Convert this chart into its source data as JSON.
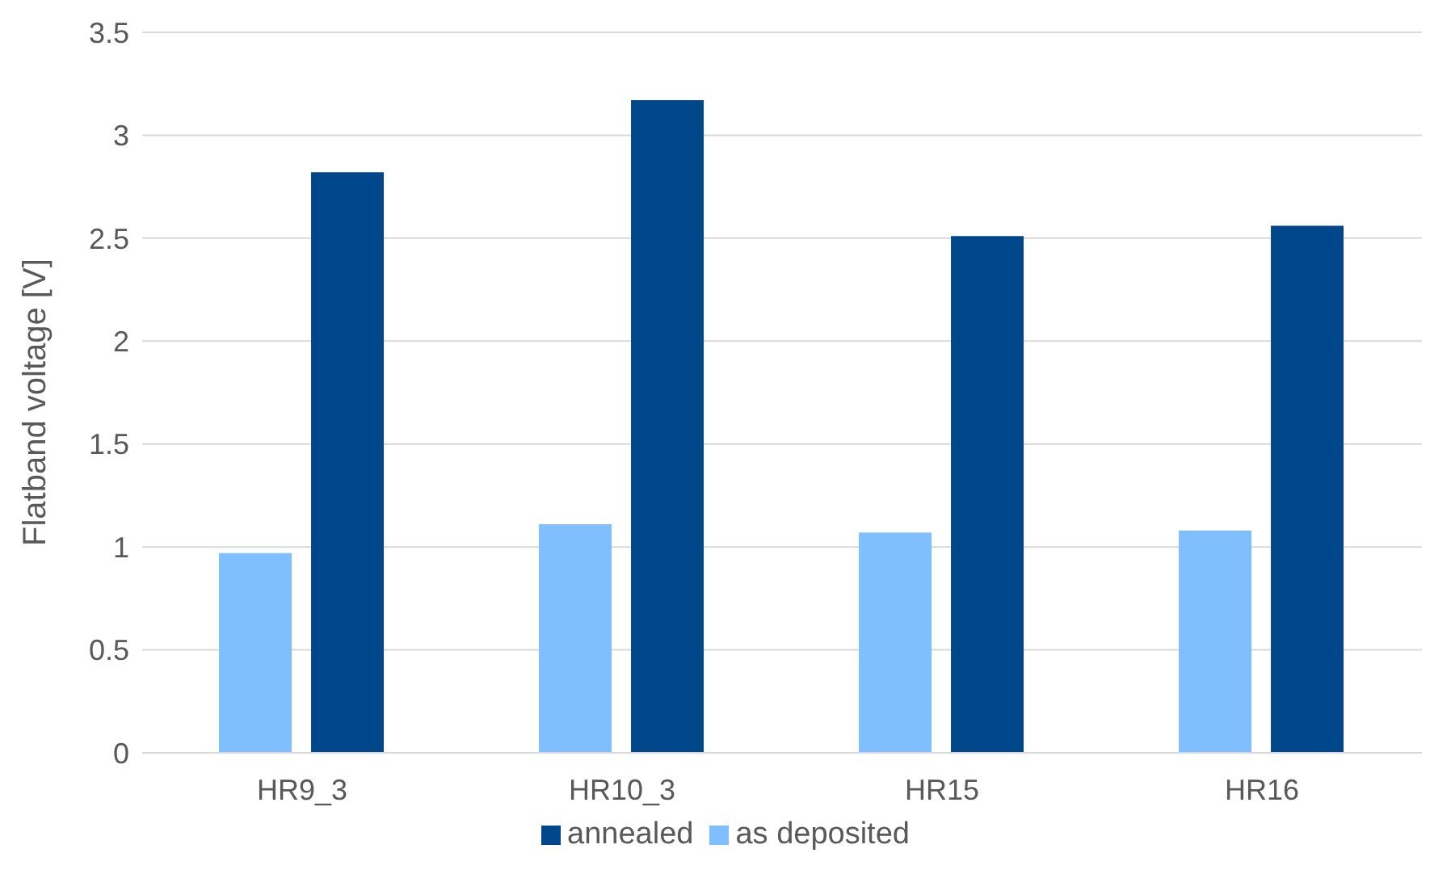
{
  "chart_data": {
    "type": "bar",
    "ylabel": "Flatband voltage  [V]",
    "categories": [
      "HR9_3",
      "HR10_3",
      "HR15",
      "HR16"
    ],
    "series": [
      {
        "name": "as deposited",
        "color": "#7fbfff",
        "values": [
          0.97,
          1.11,
          1.07,
          1.08
        ]
      },
      {
        "name": "annealed",
        "color": "#00468b",
        "values": [
          2.82,
          3.17,
          2.51,
          2.56
        ]
      }
    ],
    "ylim": [
      0,
      3.5
    ],
    "yticks": [
      0,
      0.5,
      1,
      1.5,
      2,
      2.5,
      3,
      3.5
    ],
    "grid": "y",
    "legend": "bottom"
  }
}
